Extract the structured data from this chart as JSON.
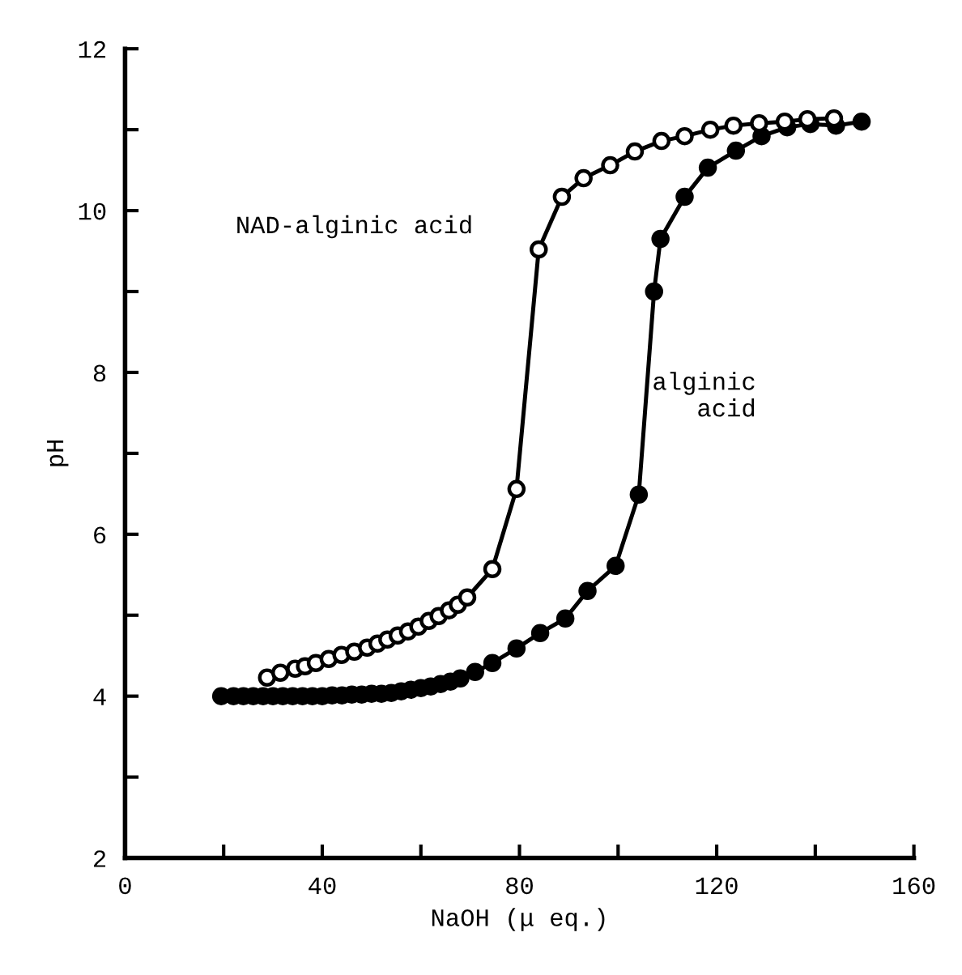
{
  "chart_data": {
    "type": "line",
    "xlabel": "NaOH (μ eq.)",
    "ylabel": "pH",
    "xlim": [
      0,
      160
    ],
    "xticks": [
      0,
      {
        "value": 20,
        "label": null
      },
      40,
      {
        "value": 60,
        "label": null
      },
      80,
      {
        "value": 100,
        "label": null
      },
      120,
      {
        "value": 140,
        "label": null
      },
      160
    ],
    "ylim": [
      2,
      12
    ],
    "yticks": [
      2,
      {
        "value": 3,
        "label": null
      },
      4,
      {
        "value": 5,
        "label": null
      },
      6,
      {
        "value": 7,
        "label": null
      },
      8,
      {
        "value": 9,
        "label": null
      },
      10,
      {
        "value": 11,
        "label": null
      },
      12
    ],
    "grid": false,
    "legend": false,
    "marker": "circle",
    "line_style": "solid",
    "series": [
      {
        "name": "NAD-alginic acid",
        "color": "#000000",
        "x": [
          28.8,
          31.5,
          34.5,
          36.5,
          38.7,
          41.3,
          43.9,
          46.5,
          49.1,
          51.2,
          53.2,
          55.3,
          57.4,
          59.5,
          61.6,
          63.6,
          65.7,
          67.5,
          69.4,
          74.5,
          79.4,
          83.9,
          88.6,
          93,
          98.4,
          103.4,
          108.8,
          113.5,
          118.7,
          123.4,
          128.6,
          133.8,
          138.4,
          143.8
        ],
        "values": [
          4.23,
          4.29,
          4.34,
          4.37,
          4.41,
          4.46,
          4.51,
          4.55,
          4.6,
          4.65,
          4.7,
          4.75,
          4.8,
          4.86,
          4.93,
          4.99,
          5.06,
          5.13,
          5.22,
          5.57,
          6.56,
          9.52,
          10.17,
          10.4,
          10.56,
          10.73,
          10.86,
          10.92,
          11.0,
          11.05,
          11.08,
          11.1,
          11.13,
          11.14
        ]
      },
      {
        "name": "alginic\nacid",
        "color": "#000000",
        "x": [
          19.5,
          22,
          24,
          26,
          28,
          30,
          32,
          34,
          36,
          38,
          40,
          42,
          44,
          46,
          48,
          50,
          52,
          54,
          56,
          58,
          60,
          62,
          64,
          66,
          68,
          71,
          74.5,
          79.4,
          84.2,
          89.3,
          93.8,
          99.5,
          104.2,
          107.3,
          108.6,
          113.5,
          118.2,
          123.9,
          129.1,
          134.3,
          139,
          144.2,
          149.4
        ],
        "values": [
          4.0,
          4.0,
          4.0,
          4.0,
          4.0,
          4.0,
          4.0,
          4.0,
          4.0,
          4.0,
          4.0,
          4.01,
          4.01,
          4.02,
          4.02,
          4.03,
          4.03,
          4.04,
          4.06,
          4.08,
          4.1,
          4.12,
          4.15,
          4.18,
          4.22,
          4.3,
          4.41,
          4.59,
          4.78,
          4.96,
          5.3,
          5.61,
          6.49,
          9.0,
          9.65,
          10.17,
          10.53,
          10.74,
          10.92,
          11.03,
          11.07,
          11.05,
          11.1
        ]
      }
    ]
  }
}
